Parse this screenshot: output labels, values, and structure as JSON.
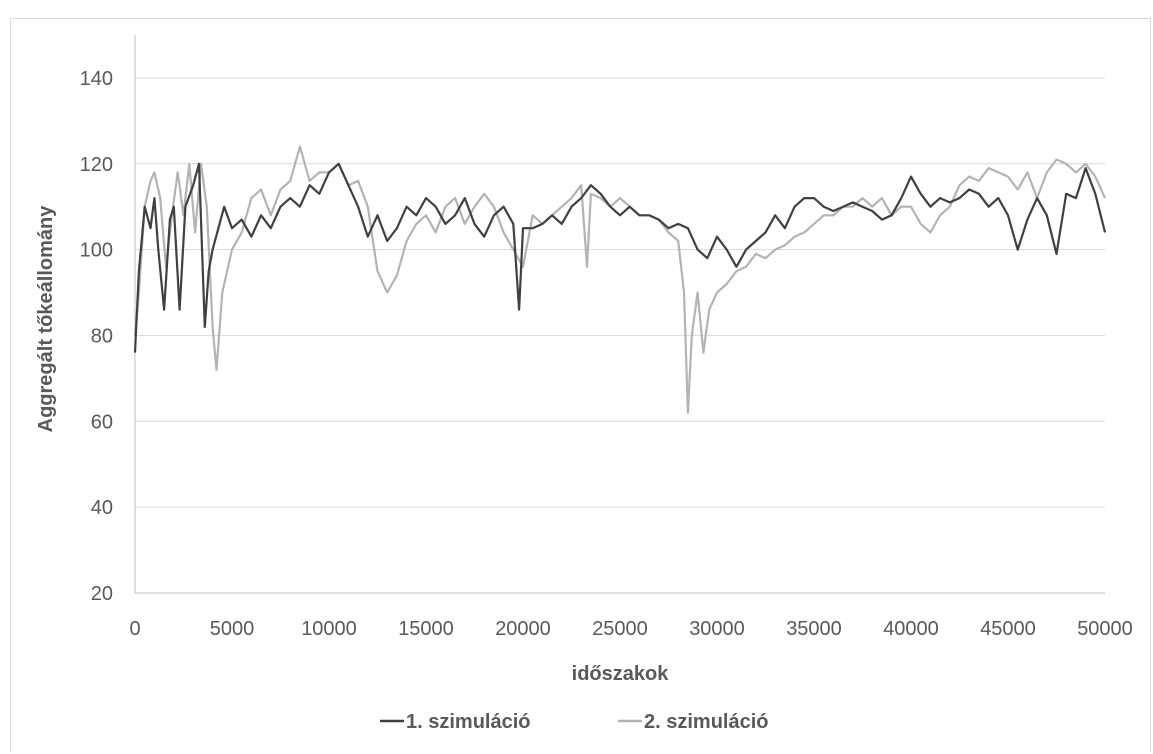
{
  "chart_data": {
    "type": "line",
    "xlabel": "időszakok",
    "ylabel": "Aggregált tőkeállomány",
    "xlim": [
      0,
      50000
    ],
    "ylim": [
      20,
      150
    ],
    "x_ticks": [
      "0",
      "5000",
      "10000",
      "15000",
      "20000",
      "25000",
      "30000",
      "35000",
      "40000",
      "45000",
      "50000"
    ],
    "y_ticks": [
      "20",
      "40",
      "60",
      "80",
      "100",
      "120",
      "140"
    ],
    "grid": "horizontal",
    "legend_position": "bottom",
    "series": [
      {
        "name": "1. szimuláció",
        "color": "#404040",
        "x": [
          0,
          200,
          500,
          800,
          1000,
          1200,
          1500,
          1800,
          2000,
          2300,
          2600,
          3000,
          3300,
          3600,
          3800,
          4000,
          4300,
          4600,
          5000,
          5500,
          6000,
          6500,
          7000,
          7500,
          8000,
          8500,
          9000,
          9500,
          10000,
          10500,
          11000,
          11500,
          12000,
          12500,
          13000,
          13500,
          14000,
          14500,
          15000,
          15500,
          16000,
          16500,
          17000,
          17500,
          18000,
          18500,
          19000,
          19500,
          19800,
          20000,
          20500,
          21000,
          21500,
          22000,
          22500,
          23000,
          23500,
          24000,
          24500,
          25000,
          25500,
          26000,
          26500,
          27000,
          27500,
          28000,
          28500,
          29000,
          29500,
          30000,
          30500,
          31000,
          31500,
          32000,
          32500,
          33000,
          33500,
          34000,
          34500,
          35000,
          35500,
          36000,
          36500,
          37000,
          37500,
          38000,
          38500,
          39000,
          39500,
          40000,
          40500,
          41000,
          41500,
          42000,
          42500,
          43000,
          43500,
          44000,
          44500,
          45000,
          45500,
          46000,
          46500,
          47000,
          47500,
          48000,
          48500,
          49000,
          49500,
          50000
        ],
        "y": [
          76,
          95,
          110,
          105,
          112,
          100,
          86,
          107,
          110,
          86,
          110,
          115,
          120,
          82,
          95,
          100,
          105,
          110,
          105,
          107,
          103,
          108,
          105,
          110,
          112,
          110,
          115,
          113,
          118,
          120,
          115,
          110,
          103,
          108,
          102,
          105,
          110,
          108,
          112,
          110,
          106,
          108,
          112,
          106,
          103,
          108,
          110,
          106,
          86,
          105,
          105,
          106,
          108,
          106,
          110,
          112,
          115,
          113,
          110,
          108,
          110,
          108,
          108,
          107,
          105,
          106,
          105,
          100,
          98,
          103,
          100,
          96,
          100,
          102,
          104,
          108,
          105,
          110,
          112,
          112,
          110,
          109,
          110,
          111,
          110,
          109,
          107,
          108,
          112,
          117,
          113,
          110,
          112,
          111,
          112,
          114,
          113,
          110,
          112,
          108,
          100,
          107,
          112,
          108,
          99,
          113,
          112,
          119,
          113,
          104
        ]
      },
      {
        "name": "2. szimuláció",
        "color": "#b3b3b3",
        "x": [
          0,
          200,
          500,
          800,
          1000,
          1300,
          1600,
          1900,
          2200,
          2500,
          2800,
          3100,
          3400,
          3700,
          4000,
          4200,
          4500,
          5000,
          5500,
          6000,
          6500,
          7000,
          7500,
          8000,
          8500,
          9000,
          9500,
          10000,
          10500,
          11000,
          11500,
          12000,
          12500,
          13000,
          13500,
          14000,
          14500,
          15000,
          15500,
          16000,
          16500,
          17000,
          17500,
          18000,
          18500,
          19000,
          19500,
          20000,
          20500,
          21000,
          21500,
          22000,
          22500,
          23000,
          23300,
          23500,
          24000,
          24500,
          25000,
          25500,
          26000,
          26500,
          27000,
          27500,
          28000,
          28300,
          28500,
          28700,
          29000,
          29300,
          29600,
          30000,
          30500,
          31000,
          31500,
          32000,
          32500,
          33000,
          33500,
          34000,
          34500,
          35000,
          35500,
          36000,
          36500,
          37000,
          37500,
          38000,
          38500,
          39000,
          39500,
          40000,
          40500,
          41000,
          41500,
          42000,
          42500,
          43000,
          43500,
          44000,
          44500,
          45000,
          45500,
          46000,
          46500,
          47000,
          47500,
          48000,
          48500,
          49000,
          49500,
          50000
        ],
        "y": [
          80,
          90,
          110,
          116,
          118,
          112,
          96,
          108,
          118,
          108,
          120,
          104,
          120,
          110,
          82,
          72,
          90,
          100,
          104,
          112,
          114,
          108,
          114,
          116,
          124,
          116,
          118,
          118,
          120,
          115,
          116,
          110,
          95,
          90,
          94,
          102,
          106,
          108,
          104,
          110,
          112,
          106,
          110,
          113,
          110,
          104,
          100,
          96,
          108,
          106,
          108,
          110,
          112,
          115,
          96,
          113,
          112,
          110,
          112,
          110,
          108,
          108,
          107,
          104,
          102,
          90,
          62,
          80,
          90,
          76,
          86,
          90,
          92,
          95,
          96,
          99,
          98,
          100,
          101,
          103,
          104,
          106,
          108,
          108,
          110,
          110,
          112,
          110,
          112,
          108,
          110,
          110,
          106,
          104,
          108,
          110,
          115,
          117,
          116,
          119,
          118,
          117,
          114,
          118,
          112,
          118,
          121,
          120,
          118,
          120,
          117,
          112
        ]
      }
    ]
  }
}
